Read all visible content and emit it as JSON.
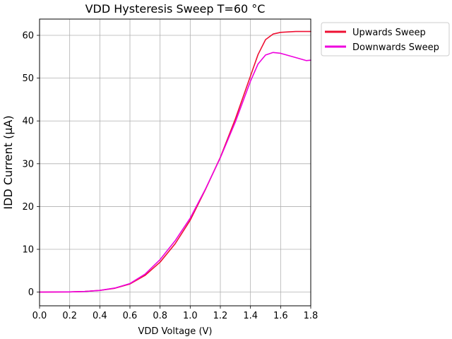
{
  "chart_data": {
    "type": "line",
    "title": "VDD Hysteresis Sweep T=60 °C",
    "xlabel": "VDD Voltage (V)",
    "ylabel": "IDD Current (μA)",
    "xlim": [
      0.0,
      1.8
    ],
    "ylim": [
      -3.2,
      63.8
    ],
    "xticks": [
      0.0,
      0.2,
      0.4,
      0.6,
      0.8,
      1.0,
      1.2,
      1.4,
      1.6,
      1.8
    ],
    "yticks": [
      0,
      10,
      20,
      30,
      40,
      50,
      60
    ],
    "xtick_labels": [
      "0.0",
      "0.2",
      "0.4",
      "0.6",
      "0.8",
      "1.0",
      "1.2",
      "1.4",
      "1.6",
      "1.8"
    ],
    "ytick_labels": [
      "0",
      "10",
      "20",
      "30",
      "40",
      "50",
      "60"
    ],
    "grid": true,
    "legend_position": "outside-top-right",
    "series": [
      {
        "name": "Upwards Sweep",
        "color": "#ee1133",
        "points": [
          [
            0.0,
            0.0
          ],
          [
            0.2,
            0.05
          ],
          [
            0.3,
            0.15
          ],
          [
            0.4,
            0.4
          ],
          [
            0.5,
            0.9
          ],
          [
            0.6,
            1.9
          ],
          [
            0.7,
            3.9
          ],
          [
            0.8,
            7.0
          ],
          [
            0.9,
            11.3
          ],
          [
            1.0,
            16.8
          ],
          [
            1.1,
            23.9
          ],
          [
            1.2,
            31.5
          ],
          [
            1.3,
            40.5
          ],
          [
            1.4,
            50.5
          ],
          [
            1.45,
            55.5
          ],
          [
            1.5,
            59.0
          ],
          [
            1.55,
            60.3
          ],
          [
            1.6,
            60.7
          ],
          [
            1.7,
            60.9
          ],
          [
            1.8,
            60.9
          ]
        ]
      },
      {
        "name": "Downwards Sweep",
        "color": "#ee00dd",
        "points": [
          [
            0.0,
            0.0
          ],
          [
            0.2,
            0.05
          ],
          [
            0.3,
            0.15
          ],
          [
            0.4,
            0.4
          ],
          [
            0.5,
            0.95
          ],
          [
            0.6,
            2.0
          ],
          [
            0.7,
            4.2
          ],
          [
            0.8,
            7.6
          ],
          [
            0.9,
            12.0
          ],
          [
            1.0,
            17.3
          ],
          [
            1.1,
            24.0
          ],
          [
            1.2,
            31.4
          ],
          [
            1.3,
            39.8
          ],
          [
            1.4,
            49.3
          ],
          [
            1.45,
            53.3
          ],
          [
            1.5,
            55.4
          ],
          [
            1.55,
            56.0
          ],
          [
            1.6,
            55.8
          ],
          [
            1.7,
            54.8
          ],
          [
            1.77,
            54.1
          ],
          [
            1.8,
            54.2
          ]
        ]
      }
    ]
  }
}
